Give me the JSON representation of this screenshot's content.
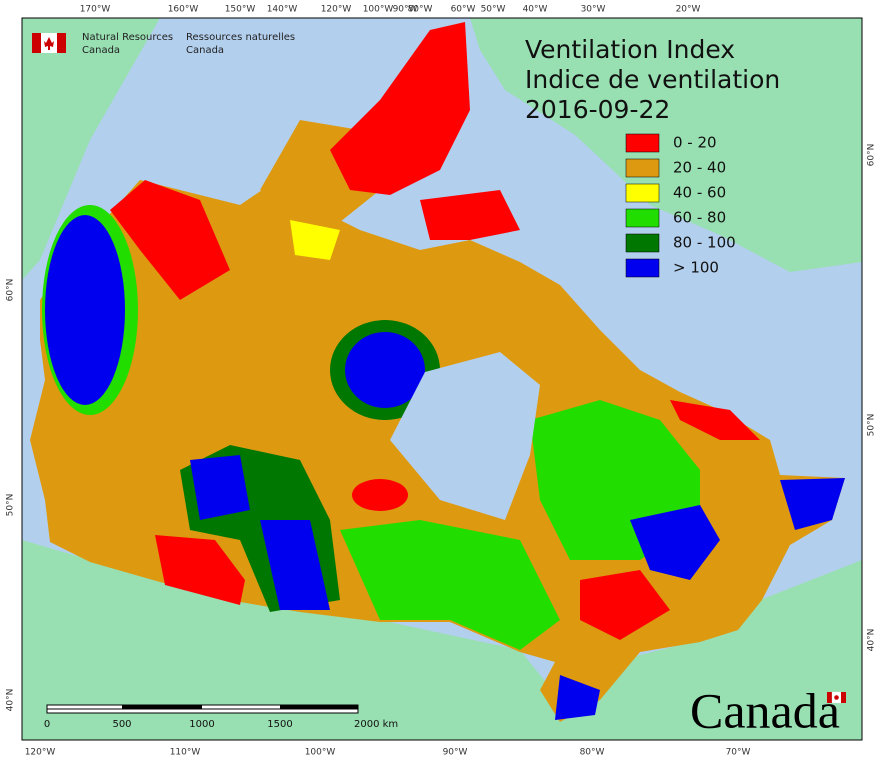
{
  "agency": {
    "english": [
      "Natural Resources",
      "Canada"
    ],
    "french": [
      "Ressources naturelles",
      "Canada"
    ]
  },
  "title": [
    "Ventilation Index",
    "Indice de ventilation",
    "2016-09-22"
  ],
  "legend": [
    {
      "label": "0 - 20",
      "color": "#ff0000"
    },
    {
      "label": "20 - 40",
      "color": "#dd9a10"
    },
    {
      "label": "40 - 60",
      "color": "#ffff00"
    },
    {
      "label": "60 - 80",
      "color": "#22dd00"
    },
    {
      "label": "80 - 100",
      "color": "#007700"
    },
    {
      "label": "> 100",
      "color": "#0000ee"
    }
  ],
  "graticule": {
    "top": [
      "170°W",
      "160°W",
      "150°W",
      "140°W",
      "120°W",
      "100°W",
      "90°W",
      "80°W",
      "60°W",
      "50°W",
      "40°W",
      "30°W",
      "20°W"
    ],
    "bottom": [
      "120°W",
      "110°W",
      "100°W",
      "90°W",
      "80°W",
      "70°W"
    ],
    "left": [
      "60°N",
      "50°N",
      "40°N"
    ],
    "right": [
      "60°N",
      "50°N",
      "40°N"
    ]
  },
  "scale_bar": [
    "0",
    "500",
    "1000",
    "1500",
    "2000  km"
  ],
  "wordmark": "Canada"
}
